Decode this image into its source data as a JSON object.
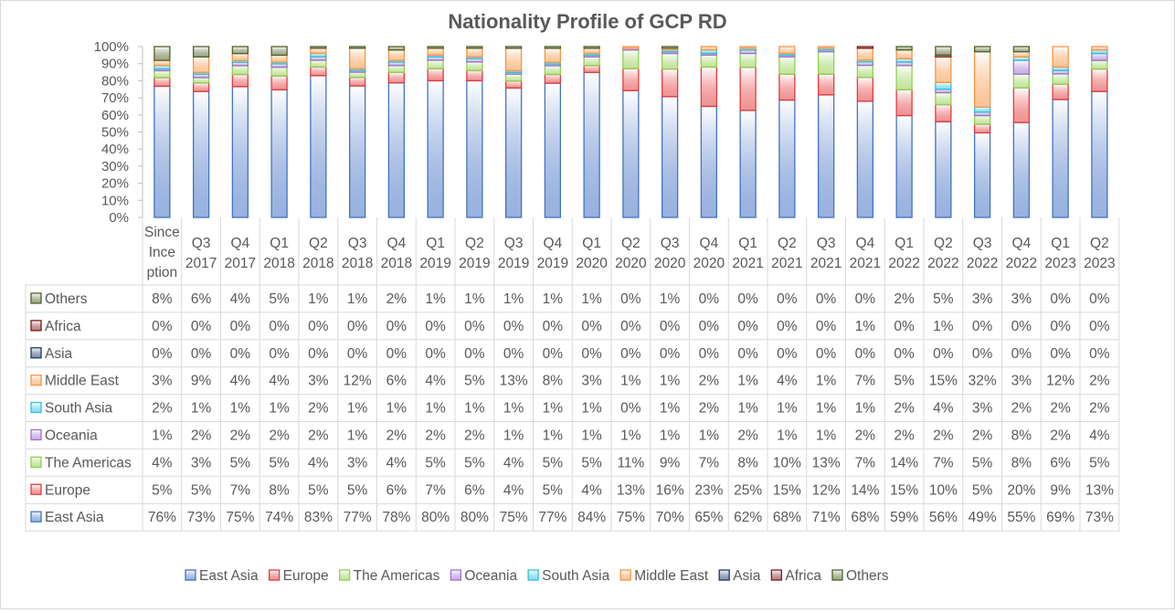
{
  "chart_data": {
    "type": "bar",
    "stacked": "percent",
    "title": "Nationality Profile of GCP RD",
    "ylim": [
      0,
      100
    ],
    "yticks": [
      "0%",
      "10%",
      "20%",
      "30%",
      "40%",
      "50%",
      "60%",
      "70%",
      "80%",
      "90%",
      "100%"
    ],
    "categories": [
      [
        "Since",
        "Ince",
        "ption"
      ],
      [
        "Q3",
        "2017"
      ],
      [
        "Q4",
        "2017"
      ],
      [
        "Q1",
        "2018"
      ],
      [
        "Q2",
        "2018"
      ],
      [
        "Q3",
        "2018"
      ],
      [
        "Q4",
        "2018"
      ],
      [
        "Q1",
        "2019"
      ],
      [
        "Q2",
        "2019"
      ],
      [
        "Q3",
        "2019"
      ],
      [
        "Q4",
        "2019"
      ],
      [
        "Q1",
        "2020"
      ],
      [
        "Q2",
        "2020"
      ],
      [
        "Q3",
        "2020"
      ],
      [
        "Q4",
        "2020"
      ],
      [
        "Q1",
        "2021"
      ],
      [
        "Q2",
        "2021"
      ],
      [
        "Q3",
        "2021"
      ],
      [
        "Q4",
        "2021"
      ],
      [
        "Q1",
        "2022"
      ],
      [
        "Q2",
        "2022"
      ],
      [
        "Q3",
        "2022"
      ],
      [
        "Q4",
        "2022"
      ],
      [
        "Q1",
        "2023"
      ],
      [
        "Q2",
        "2023"
      ]
    ],
    "series": [
      {
        "name": "East Asia",
        "color": "#4472c4",
        "values": [
          76,
          73,
          75,
          74,
          83,
          77,
          78,
          80,
          80,
          75,
          77,
          84,
          75,
          70,
          65,
          62,
          68,
          71,
          68,
          59,
          56,
          49,
          55,
          69,
          73
        ]
      },
      {
        "name": "Europe",
        "color": "#e33c3c",
        "values": [
          5,
          5,
          7,
          8,
          5,
          5,
          6,
          7,
          6,
          4,
          5,
          4,
          13,
          16,
          23,
          25,
          15,
          12,
          14,
          15,
          10,
          5,
          20,
          9,
          13
        ]
      },
      {
        "name": "The Americas",
        "color": "#92d050",
        "values": [
          4,
          3,
          5,
          5,
          4,
          3,
          4,
          5,
          5,
          4,
          5,
          5,
          11,
          9,
          7,
          8,
          10,
          13,
          7,
          14,
          7,
          5,
          8,
          6,
          5
        ]
      },
      {
        "name": "Oceania",
        "color": "#9e73c8",
        "values": [
          1,
          2,
          2,
          2,
          2,
          1,
          2,
          2,
          2,
          1,
          1,
          1,
          1,
          1,
          1,
          2,
          1,
          1,
          2,
          2,
          2,
          2,
          8,
          2,
          4
        ]
      },
      {
        "name": "South Asia",
        "color": "#2ec0dd",
        "values": [
          2,
          1,
          1,
          1,
          2,
          1,
          1,
          1,
          1,
          1,
          1,
          1,
          0,
          1,
          2,
          1,
          1,
          1,
          1,
          2,
          4,
          3,
          2,
          2,
          2
        ]
      },
      {
        "name": "Middle East",
        "color": "#f79646",
        "values": [
          3,
          9,
          4,
          4,
          3,
          12,
          6,
          4,
          5,
          13,
          8,
          3,
          1,
          1,
          2,
          1,
          4,
          1,
          7,
          5,
          15,
          32,
          3,
          12,
          2
        ]
      },
      {
        "name": "Asia",
        "color": "#1f3864",
        "values": [
          0,
          0,
          0,
          0,
          0,
          0,
          0,
          0,
          0,
          0,
          0,
          0,
          0,
          0,
          0,
          0,
          0,
          0,
          0,
          0,
          0,
          0,
          0,
          0,
          0
        ]
      },
      {
        "name": "Africa",
        "color": "#7b1c1c",
        "values": [
          0,
          0,
          0,
          0,
          0,
          0,
          0,
          0,
          0,
          0,
          0,
          0,
          0,
          0,
          0,
          0,
          0,
          0,
          1,
          0,
          1,
          0,
          0,
          0,
          0
        ]
      },
      {
        "name": "Others",
        "color": "#4f6228",
        "values": [
          8,
          6,
          4,
          5,
          1,
          1,
          2,
          1,
          1,
          1,
          1,
          1,
          0,
          1,
          0,
          0,
          0,
          0,
          0,
          2,
          5,
          3,
          3,
          0,
          0
        ]
      }
    ],
    "table_row_order": [
      "Others",
      "Africa",
      "Asia",
      "Middle East",
      "South Asia",
      "Oceania",
      "The Americas",
      "Europe",
      "East Asia"
    ],
    "value_suffix": "%",
    "legend": "bottom",
    "grid": false
  }
}
